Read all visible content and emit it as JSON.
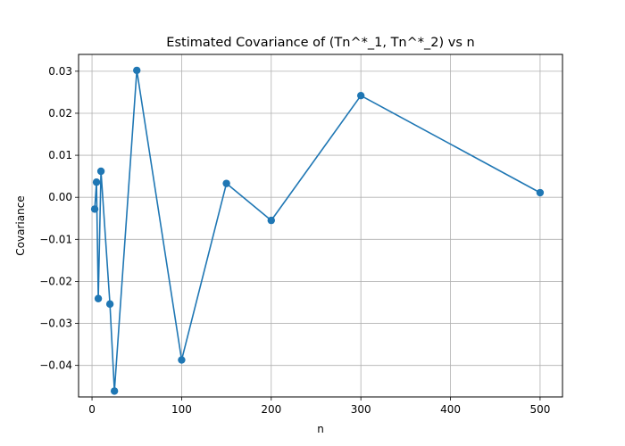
{
  "chart_data": {
    "type": "line",
    "title": "Estimated Covariance of (Tn^*_1, Tn^*_2) vs n",
    "xlabel": "n",
    "ylabel": "Covariance",
    "xlim": [
      -15,
      525
    ],
    "ylim": [
      -0.0475,
      0.034
    ],
    "grid": true,
    "x_ticks": [
      0,
      100,
      200,
      300,
      400,
      500
    ],
    "x_tick_labels": [
      "0",
      "100",
      "200",
      "300",
      "400",
      "500"
    ],
    "y_ticks": [
      -0.04,
      -0.03,
      -0.02,
      -0.01,
      0.0,
      0.01,
      0.02,
      0.03
    ],
    "y_tick_labels": [
      "−0.04",
      "−0.03",
      "−0.02",
      "−0.01",
      "0.00",
      "0.01",
      "0.02",
      "0.03"
    ],
    "series": [
      {
        "color": "#1f77b4",
        "marker": "circle",
        "x": [
          3,
          5,
          7,
          10,
          20,
          25,
          50,
          100,
          150,
          200,
          300,
          500
        ],
        "y": [
          -0.0028,
          0.0036,
          -0.0241,
          0.0062,
          -0.0254,
          -0.0461,
          0.0302,
          -0.0387,
          0.0033,
          -0.0055,
          0.0242,
          0.0011
        ]
      }
    ]
  }
}
